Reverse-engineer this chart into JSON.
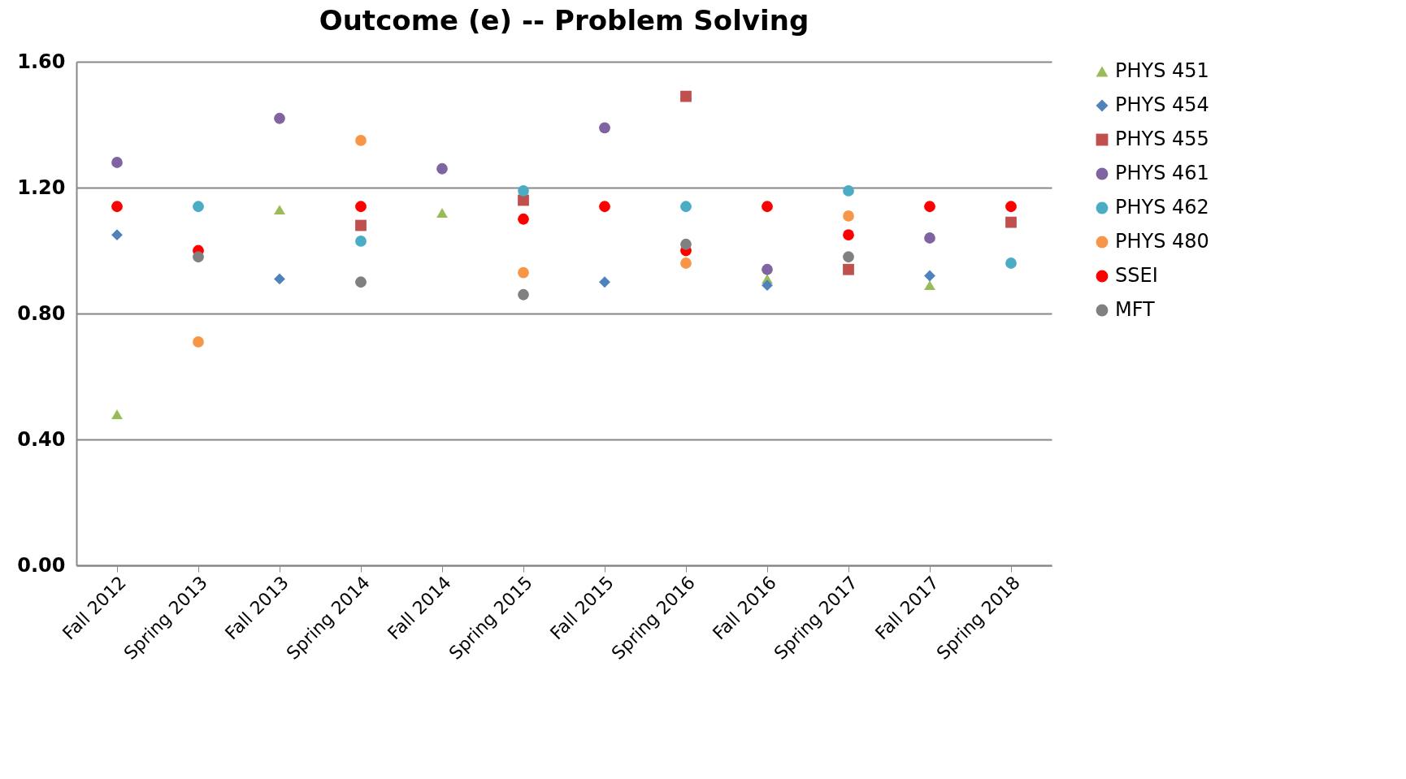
{
  "chart_data": {
    "type": "scatter",
    "title": "Outcome (e) -- Problem Solving",
    "categories": [
      "Fall 2012",
      "Spring 2013",
      "Fall 2013",
      "Spring 2014",
      "Fall 2014",
      "Spring 2015",
      "Fall 2015",
      "Spring 2016",
      "Fall 2016",
      "Spring 2017",
      "Fall 2017",
      "Spring 2018"
    ],
    "series": [
      {
        "name": "PHYS 451",
        "color": "#9bbb59",
        "marker": "triangle",
        "values": [
          0.48,
          null,
          1.13,
          null,
          1.12,
          null,
          null,
          null,
          0.91,
          null,
          0.89,
          null
        ]
      },
      {
        "name": "PHYS 454",
        "color": "#4f81bd",
        "marker": "diamond",
        "values": [
          1.05,
          null,
          0.91,
          null,
          null,
          null,
          0.9,
          null,
          0.89,
          null,
          0.92,
          null
        ]
      },
      {
        "name": "PHYS 455",
        "color": "#c0504d",
        "marker": "square",
        "values": [
          null,
          null,
          null,
          1.08,
          null,
          1.16,
          null,
          1.49,
          null,
          0.94,
          null,
          1.09
        ]
      },
      {
        "name": "PHYS 461",
        "color": "#8064a2",
        "marker": "circle",
        "values": [
          1.28,
          null,
          1.42,
          null,
          1.26,
          null,
          1.39,
          null,
          0.94,
          null,
          1.04,
          null
        ]
      },
      {
        "name": "PHYS 462",
        "color": "#4bacc6",
        "marker": "circle",
        "values": [
          null,
          1.14,
          null,
          1.03,
          null,
          1.19,
          null,
          1.14,
          null,
          1.19,
          null,
          0.96
        ]
      },
      {
        "name": "PHYS 480",
        "color": "#f79646",
        "marker": "circle",
        "values": [
          null,
          0.71,
          null,
          1.35,
          null,
          0.93,
          null,
          0.96,
          null,
          1.11,
          null,
          null
        ]
      },
      {
        "name": "SSEI",
        "color": "#ff0000",
        "marker": "circle",
        "values": [
          1.14,
          1.0,
          null,
          1.14,
          null,
          1.1,
          1.14,
          1.0,
          1.14,
          1.05,
          1.14,
          1.14
        ]
      },
      {
        "name": "MFT",
        "color": "#808080",
        "marker": "circle",
        "values": [
          null,
          0.98,
          null,
          0.9,
          null,
          0.86,
          null,
          1.02,
          null,
          0.98,
          null,
          null
        ]
      }
    ],
    "ylim": [
      0,
      1.6
    ],
    "yticks": [
      {
        "value": 0,
        "label": "0.00"
      },
      {
        "value": 0.4,
        "label": "0.40"
      },
      {
        "value": 0.8,
        "label": "0.80"
      },
      {
        "value": 1.2,
        "label": "1.20"
      },
      {
        "value": 1.6,
        "label": "1.60"
      }
    ],
    "grid": "y",
    "legend": "right"
  }
}
